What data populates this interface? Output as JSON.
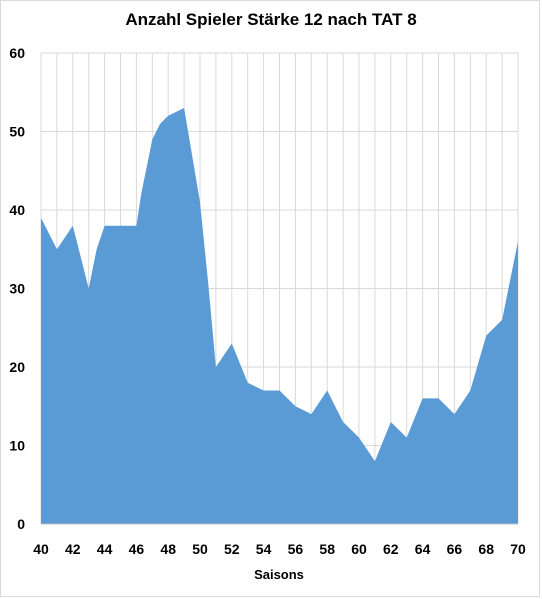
{
  "chart_data": {
    "type": "area",
    "title": "Anzahl Spieler Stärke 12 nach TAT 8",
    "xlabel": "Saisons",
    "ylabel": "",
    "xlim": [
      40,
      70
    ],
    "ylim": [
      0,
      60
    ],
    "x_ticks": [
      40,
      42,
      44,
      46,
      48,
      50,
      52,
      54,
      56,
      58,
      60,
      62,
      64,
      66,
      68,
      70
    ],
    "y_ticks": [
      0,
      10,
      20,
      30,
      40,
      50,
      60
    ],
    "grid": "vertical-and-horizontal",
    "legend": "none",
    "fill_color": "#5b9bd5",
    "grid_color": "#d9d9d9",
    "series": [
      {
        "x": [
          40,
          40.5,
          41,
          41.5,
          42,
          42.5,
          43,
          43.5,
          44,
          45,
          46,
          46.3,
          46.6,
          47,
          47.5,
          48,
          48.5,
          49,
          49.5,
          50,
          50.5,
          51,
          51.5,
          52,
          52.5,
          53,
          53.5,
          54,
          54.5,
          55,
          55.5,
          56,
          56.5,
          57,
          57.5,
          58,
          58.5,
          59,
          59.5,
          60,
          60.5,
          61,
          61.5,
          62,
          62.5,
          63,
          63.5,
          64,
          64.5,
          65,
          65.5,
          66,
          66.5,
          67,
          67.5,
          68,
          68.5,
          69,
          69.5,
          70
        ],
        "y": [
          39,
          37,
          35,
          36.5,
          38,
          34,
          30,
          35,
          38,
          38,
          38,
          42,
          45,
          49,
          51,
          52,
          52.5,
          53,
          47,
          41,
          31,
          20,
          21.5,
          23,
          20.5,
          18,
          17.5,
          17,
          17,
          17,
          16,
          15,
          14.5,
          14,
          15.5,
          17,
          15,
          13,
          12,
          11,
          9.5,
          8,
          10.5,
          13,
          12,
          11,
          13.5,
          16,
          16,
          16,
          15,
          14,
          15.5,
          17,
          20.5,
          24,
          25,
          26,
          31,
          36
        ]
      }
    ]
  }
}
